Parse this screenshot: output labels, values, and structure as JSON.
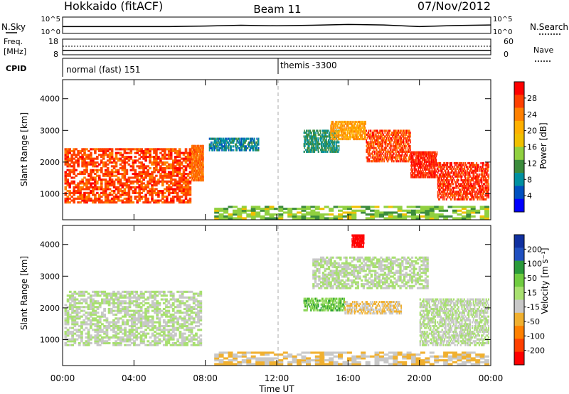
{
  "header": {
    "station": "Hokkaido (fitACF)",
    "beam": "Beam 11",
    "date": "07/Nov/2012"
  },
  "noise_panel": {
    "left_label": "N.Sky",
    "right_label": "N.Search",
    "left_ticks": [
      "10^5",
      "10^0"
    ],
    "right_ticks": [
      "10^5",
      "10^0"
    ]
  },
  "freq_panel": {
    "label_line1": "Freq.",
    "label_line2": "[MHz]",
    "left_ticks": [
      "18",
      "8"
    ],
    "right_label": "Nave",
    "right_ticks": [
      "60",
      "0"
    ]
  },
  "cpid_panel": {
    "label": "CPID",
    "segments": [
      {
        "name": "normal (fast) 151"
      },
      {
        "name": "themis -3300"
      }
    ]
  },
  "time_axis": {
    "label": "Time UT",
    "ticks": [
      "00:00",
      "04:00",
      "08:00",
      "12:00",
      "16:00",
      "20:00",
      "00:00"
    ]
  },
  "power_panel": {
    "ylabel": "Slant Range [km]",
    "colorbar_label": "Power [dB]",
    "colorbar_ticks": [
      "28",
      "24",
      "20",
      "16",
      "12",
      "8",
      "4"
    ],
    "colorbar_colors": [
      "#ff0000",
      "#ff4000",
      "#ff8000",
      "#ffb000",
      "#f0c000",
      "#90d040",
      "#3c8c3c",
      "#0090a0",
      "#0050c0",
      "#0000ff"
    ]
  },
  "velocity_panel": {
    "ylabel": "Slant Range [km]",
    "colorbar_label": "Velocity [m s⁻¹]",
    "colorbar_ticks": [
      "200",
      "100",
      "50",
      "15",
      "-15",
      "-50",
      "-100",
      "-200"
    ],
    "colorbar_colors": [
      "#1030a0",
      "#2050c0",
      "#2a9a3a",
      "#70cc40",
      "#a8e070",
      "#c8c8c8",
      "#f0b030",
      "#ff8000",
      "#ff4000",
      "#ff0000"
    ]
  },
  "chart_data": [
    {
      "type": "line",
      "title": "Hokkaido (fitACF)",
      "subtitle": "Beam 11 07/Nov/2012",
      "panel": "noise",
      "series": [
        {
          "name": "N.Sky"
        },
        {
          "name": "N.Search"
        }
      ],
      "x": [
        0,
        2,
        4,
        6,
        8,
        10,
        12,
        14,
        16,
        18,
        20,
        22,
        24
      ],
      "y": [
        2.0,
        2.0,
        2.0,
        2.0,
        2.2,
        2.5,
        2.3,
        2.5,
        2.8,
        2.6,
        2.0,
        2.4,
        2.6
      ]
    },
    {
      "type": "line",
      "panel": "frequency",
      "x": [
        0,
        24
      ],
      "y": [
        11.5,
        11.5
      ],
      "ylim": [
        8,
        18
      ]
    },
    {
      "type": "heatmap",
      "panel": "power",
      "xlabel": "Time UT",
      "ylabel": "Slant Range [km]",
      "xlim": [
        0,
        24
      ],
      "ylim": [
        180,
        4600
      ],
      "colorbar": {
        "label": "Power [dB]",
        "range": [
          0,
          32
        ]
      },
      "regions": [
        {
          "t0": 0.1,
          "t1": 7.2,
          "r0": 700,
          "r1": 2400,
          "value": 27
        },
        {
          "t0": 7.2,
          "t1": 7.9,
          "r0": 1400,
          "r1": 2500,
          "value": 25
        },
        {
          "t0": 8.2,
          "t1": 11.0,
          "r0": 2350,
          "r1": 2750,
          "value": 8
        },
        {
          "t0": 13.5,
          "t1": 15.5,
          "r0": 2300,
          "r1": 3000,
          "value": 10
        },
        {
          "t0": 15.0,
          "t1": 17.0,
          "r0": 2700,
          "r1": 3300,
          "value": 22
        },
        {
          "t0": 17.0,
          "t1": 19.5,
          "r0": 2000,
          "r1": 3000,
          "value": 27
        },
        {
          "t0": 19.5,
          "t1": 21.0,
          "r0": 1500,
          "r1": 2300,
          "value": 29
        },
        {
          "t0": 21.0,
          "t1": 23.9,
          "r0": 800,
          "r1": 2000,
          "value": 28
        },
        {
          "t0": 8.5,
          "t1": 23.9,
          "r0": 200,
          "r1": 600,
          "value": 14
        }
      ]
    },
    {
      "type": "heatmap",
      "panel": "velocity",
      "xlabel": "Time UT",
      "ylabel": "Slant Range [km]",
      "xlim": [
        0,
        24
      ],
      "ylim": [
        180,
        4600
      ],
      "colorbar": {
        "label": "Velocity [m s⁻¹]",
        "range": [
          -200,
          200
        ]
      },
      "regions": [
        {
          "t0": 0.1,
          "t1": 7.8,
          "r0": 800,
          "r1": 2500,
          "value": 0
        },
        {
          "t0": 13.5,
          "t1": 15.8,
          "r0": 1900,
          "r1": 2300,
          "value": 60
        },
        {
          "t0": 15.8,
          "t1": 19.0,
          "r0": 1800,
          "r1": 2200,
          "value": -40
        },
        {
          "t0": 14.0,
          "t1": 20.5,
          "r0": 2600,
          "r1": 3600,
          "value": 0
        },
        {
          "t0": 20.0,
          "t1": 23.9,
          "r0": 800,
          "r1": 2300,
          "value": 0
        },
        {
          "t0": 16.2,
          "t1": 16.9,
          "r0": 3900,
          "r1": 4300,
          "value": -200
        },
        {
          "t0": 8.5,
          "t1": 23.9,
          "r0": 200,
          "r1": 600,
          "value": -40
        }
      ]
    }
  ]
}
